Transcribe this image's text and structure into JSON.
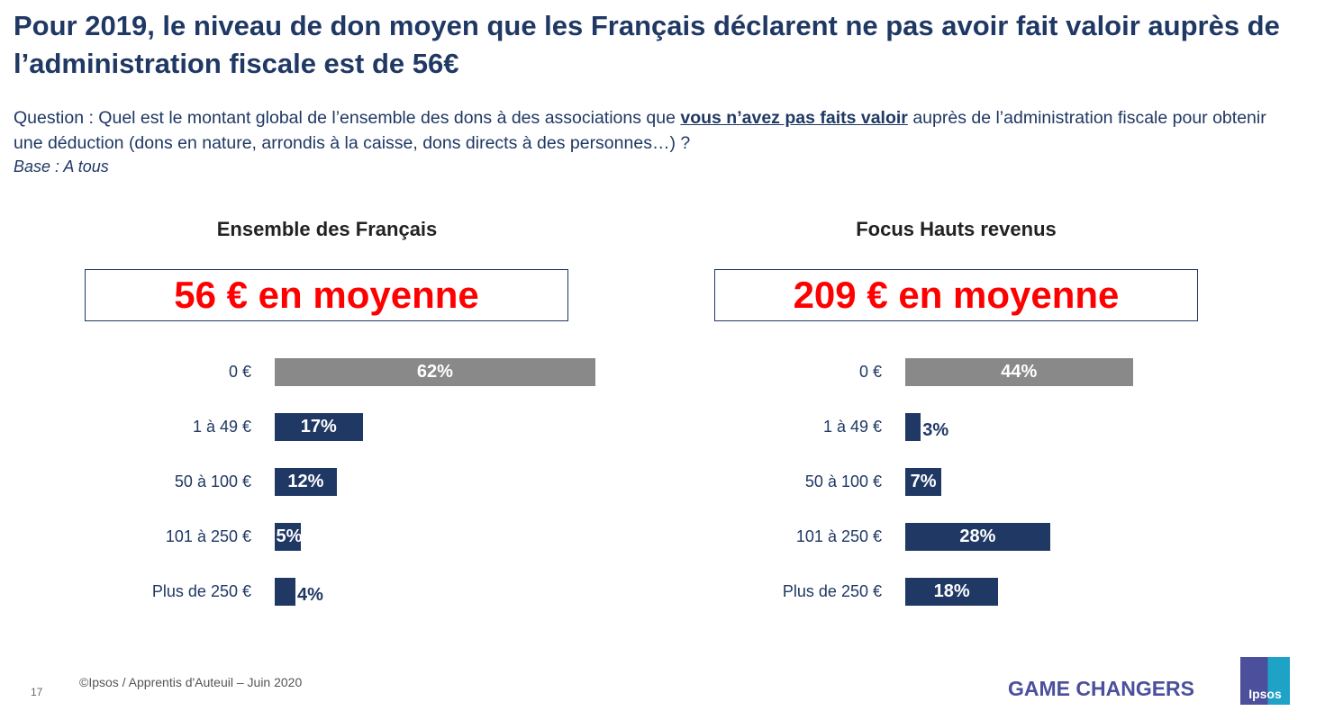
{
  "title": "Pour 2019, le niveau de don moyen que les Français déclarent ne pas avoir fait valoir auprès de l’administration fiscale est de 56€",
  "question": {
    "prefix": "Question : Quel est le montant global de l’ensemble des dons à des associations que ",
    "emphasis": "vous n’avez pas faits valoir",
    "suffix": " auprès de l’administration fiscale pour obtenir une déduction (dons en nature, arrondis à la caisse, dons directs à des personnes…) ?"
  },
  "base": "Base : A tous",
  "colors": {
    "bar_zero": "#898989",
    "bar": "#1f3864",
    "highlight": "#ff0000"
  },
  "chart_data": [
    {
      "type": "bar",
      "orientation": "horizontal",
      "title": "Ensemble des Français",
      "average": "56 € en moyenne",
      "categories": [
        "0 €",
        "1 à 49 €",
        "50 à 100 €",
        "101 à 250 €",
        "Plus de 250 €"
      ],
      "values": [
        62,
        17,
        12,
        5,
        4
      ],
      "labels": [
        "62%",
        "17%",
        "12%",
        "5%",
        "4%"
      ],
      "grid": false
    },
    {
      "type": "bar",
      "orientation": "horizontal",
      "title": "Focus Hauts revenus",
      "average": "209 € en moyenne",
      "categories": [
        "0 €",
        "1 à 49 €",
        "50 à 100 €",
        "101 à 250 €",
        "Plus de 250 €"
      ],
      "values": [
        44,
        3,
        7,
        28,
        18
      ],
      "labels": [
        "44%",
        "3%",
        "7%",
        "28%",
        "18%"
      ],
      "grid": false
    }
  ],
  "footer": {
    "page": "17",
    "source": "©Ipsos / Apprentis d'Auteuil – Juin 2020",
    "tagline": "GAME CHANGERS",
    "logo": "Ipsos"
  }
}
